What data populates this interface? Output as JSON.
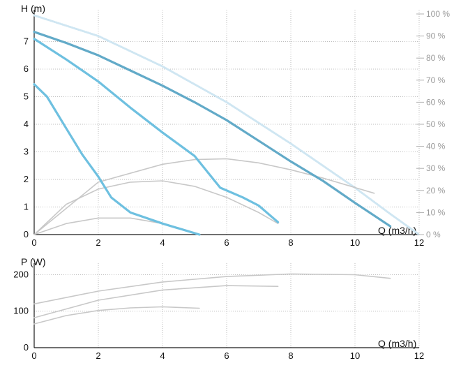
{
  "chart_data": [
    {
      "type": "line",
      "title": "",
      "ylabel": "H (m)",
      "xlabel": "Q (m3/h)",
      "xlim": [
        0,
        12
      ],
      "ylim": [
        0,
        8
      ],
      "x_ticks": [
        "0",
        "2",
        "4",
        "6",
        "8",
        "10",
        "12"
      ],
      "y_ticks": [
        "0",
        "1",
        "2",
        "3",
        "4",
        "5",
        "6",
        "7"
      ],
      "grid": true,
      "right_axis": {
        "label_ticks": [
          "0 %",
          "10 %",
          "20 %",
          "30 %",
          "40 %",
          "50 %",
          "60 %",
          "70 %",
          "80 %",
          "90 %",
          "100 %"
        ],
        "range": [
          0,
          100
        ]
      },
      "series": [
        {
          "kind": "pump-curve",
          "color": "#62aac8",
          "x": [
            0,
            1,
            2,
            3,
            4,
            5,
            6,
            7,
            8,
            9,
            10,
            11.1
          ],
          "y": [
            7.35,
            6.95,
            6.5,
            5.95,
            5.4,
            4.8,
            4.15,
            3.4,
            2.65,
            1.95,
            1.15,
            0.3
          ]
        },
        {
          "kind": "pump-curve",
          "color": "#6ec0e0",
          "x": [
            0,
            1,
            2,
            3,
            4,
            5,
            5.8,
            6.5,
            7,
            7.6
          ],
          "y": [
            7.1,
            6.35,
            5.55,
            4.6,
            3.7,
            2.85,
            1.7,
            1.35,
            1.05,
            0.45
          ]
        },
        {
          "kind": "pump-curve",
          "color": "#6ec0e0",
          "x": [
            0,
            0.4,
            1,
            1.5,
            2,
            2.4,
            3,
            4,
            5.15
          ],
          "y": [
            5.45,
            5.0,
            3.85,
            2.9,
            2.1,
            1.35,
            0.8,
            0.4,
            0.0
          ]
        },
        {
          "kind": "max-curve",
          "color": "#cfe6f2",
          "x": [
            0,
            2,
            4,
            6,
            8,
            10,
            11.1,
            12
          ],
          "y": [
            7.95,
            7.2,
            6.1,
            4.8,
            3.3,
            1.7,
            0.75,
            0.0
          ]
        },
        {
          "kind": "efficiency",
          "color": "#c8c8c8",
          "x": [
            0,
            2,
            4,
            5,
            6,
            7,
            8,
            9,
            10.6
          ],
          "y": [
            0,
            1.9,
            2.55,
            2.72,
            2.75,
            2.6,
            2.35,
            2.05,
            1.5
          ]
        },
        {
          "kind": "efficiency",
          "color": "#c8c8c8",
          "x": [
            0,
            1,
            2,
            3,
            4,
            5,
            6,
            7,
            7.6
          ],
          "y": [
            0,
            1.1,
            1.65,
            1.9,
            1.95,
            1.75,
            1.35,
            0.8,
            0.4
          ]
        },
        {
          "kind": "efficiency",
          "color": "#c8c8c8",
          "x": [
            0,
            1,
            2,
            3,
            4,
            5,
            5.15
          ],
          "y": [
            0,
            0.4,
            0.6,
            0.6,
            0.4,
            0.05,
            0.0
          ]
        }
      ]
    },
    {
      "type": "line",
      "title": "",
      "ylabel": "P (W)",
      "xlabel": "Q (m3/h)",
      "xlim": [
        0,
        12
      ],
      "ylim": [
        0,
        220
      ],
      "x_ticks": [
        "0",
        "2",
        "4",
        "6",
        "8",
        "10",
        "12"
      ],
      "y_ticks": [
        "0",
        "100",
        "200"
      ],
      "grid": true,
      "series": [
        {
          "kind": "power",
          "color": "#c8c8c8",
          "x": [
            0,
            2,
            4,
            6,
            8,
            10,
            11.1
          ],
          "y": [
            120,
            155,
            180,
            195,
            202,
            200,
            190
          ]
        },
        {
          "kind": "power",
          "color": "#c8c8c8",
          "x": [
            0,
            2,
            4,
            6,
            7.6
          ],
          "y": [
            82,
            130,
            158,
            170,
            168
          ]
        },
        {
          "kind": "power",
          "color": "#c8c8c8",
          "x": [
            0,
            1,
            2,
            3,
            4,
            5.15
          ],
          "y": [
            65,
            88,
            102,
            109,
            112,
            108
          ]
        }
      ]
    }
  ]
}
